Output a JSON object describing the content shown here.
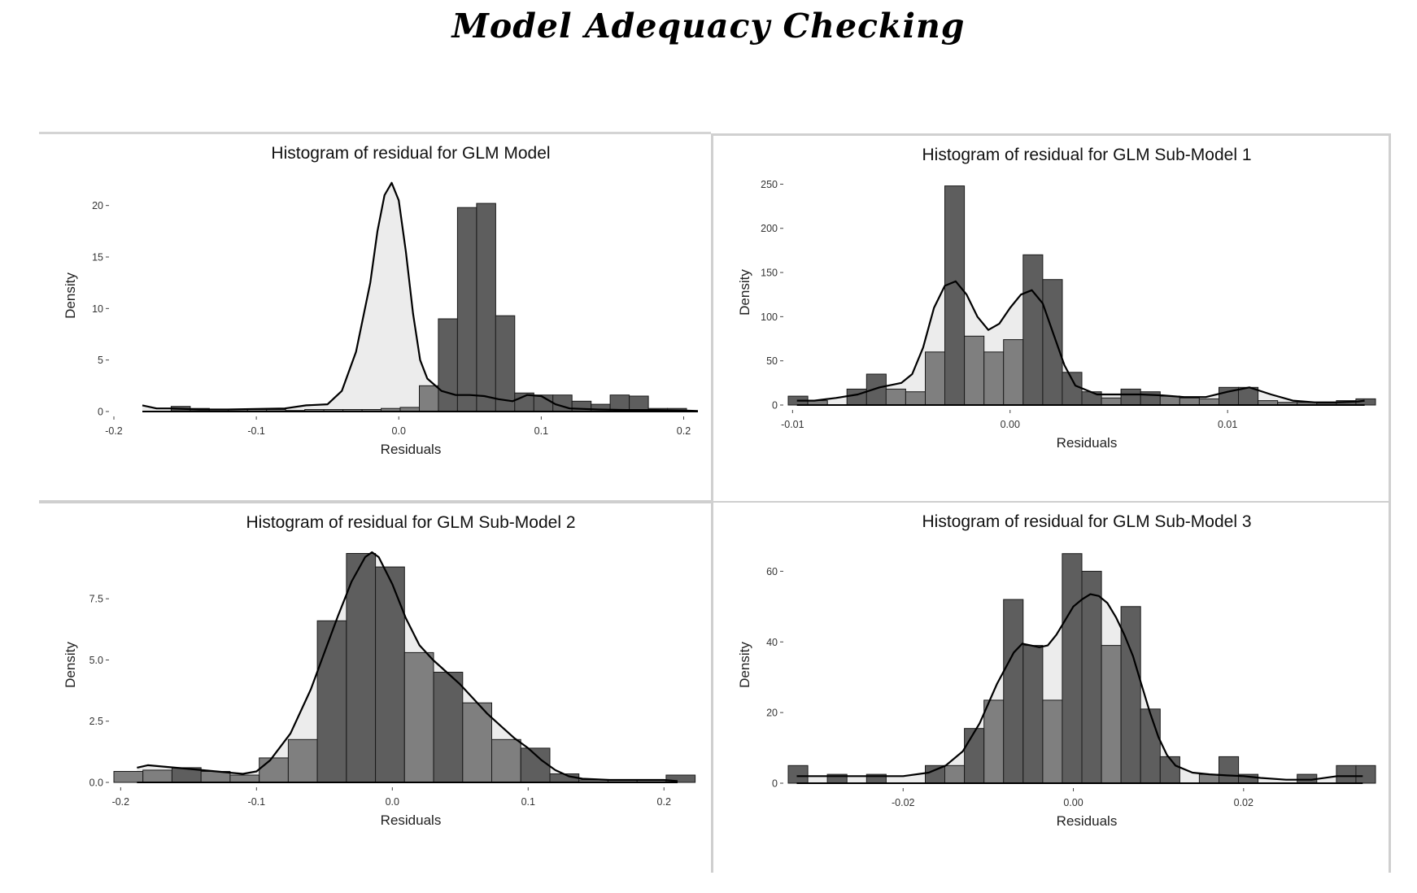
{
  "title": "Model Adequacy Checking",
  "chart_data": [
    {
      "type": "histogram",
      "title": "Histogram of residual for GLM Model",
      "xlabel": "Residuals",
      "ylabel": "Density",
      "xlim": [
        -0.2,
        0.21
      ],
      "ylim": [
        0,
        22.5
      ],
      "x_ticks": [
        -0.2,
        -0.1,
        0.0,
        0.1,
        0.2
      ],
      "x_tick_labels": [
        "-0.2",
        "-0.1",
        "0.0",
        "0.1",
        "0.2"
      ],
      "y_ticks": [
        0,
        5,
        10,
        15,
        20
      ],
      "y_tick_labels": [
        "0",
        "5",
        "10",
        "15",
        "20"
      ],
      "bin_start": -0.2,
      "bin_width": 0.0134,
      "bin_values": [
        0,
        0,
        0,
        0.5,
        0.3,
        0.2,
        0.2,
        0.2,
        0.2,
        0.1,
        0.2,
        0.2,
        0.2,
        0.2,
        0.3,
        0.4,
        2.5,
        9.0,
        19.8,
        20.2,
        9.3,
        1.8,
        1.6,
        1.6,
        1.0,
        0.7,
        1.6,
        1.5,
        0.3,
        0.3,
        0,
        0,
        0,
        0,
        0,
        0,
        0
      ],
      "density_curve": {
        "x": [
          -0.18,
          -0.17,
          -0.16,
          -0.14,
          -0.12,
          -0.1,
          -0.08,
          -0.065,
          -0.05,
          -0.04,
          -0.03,
          -0.02,
          -0.015,
          -0.01,
          -0.005,
          0.0,
          0.005,
          0.01,
          0.015,
          0.02,
          0.03,
          0.04,
          0.05,
          0.06,
          0.07,
          0.08,
          0.09,
          0.1,
          0.11,
          0.12,
          0.14,
          0.16,
          0.18,
          0.2,
          0.21
        ],
        "y": [
          0.6,
          0.3,
          0.3,
          0.2,
          0.2,
          0.25,
          0.3,
          0.6,
          0.7,
          2.0,
          5.8,
          12.5,
          17.5,
          21.0,
          22.2,
          20.5,
          15.5,
          9.5,
          5.0,
          3.2,
          2.0,
          1.6,
          1.6,
          1.5,
          1.2,
          1.0,
          1.6,
          1.5,
          0.7,
          0.3,
          0.2,
          0.15,
          0.15,
          0.1,
          0.05
        ]
      }
    },
    {
      "type": "histogram",
      "title": "Histogram of residual for GLM Sub-Model 1",
      "xlabel": "Residuals",
      "ylabel": "Density",
      "xlim": [
        -0.0102,
        0.0168
      ],
      "ylim": [
        0,
        255
      ],
      "x_ticks": [
        -0.01,
        0.0,
        0.01
      ],
      "x_tick_labels": [
        "-0.01",
        "0.00",
        "0.01"
      ],
      "y_ticks": [
        0,
        50,
        100,
        150,
        200,
        250
      ],
      "y_tick_labels": [
        "0",
        "50",
        "100",
        "150",
        "200",
        "250"
      ],
      "bin_start": -0.0102,
      "bin_width": 0.0009,
      "bin_values": [
        10,
        5,
        0,
        18,
        35,
        18,
        15,
        60,
        248,
        78,
        60,
        74,
        170,
        142,
        37,
        15,
        8,
        18,
        15,
        10,
        8,
        7,
        20,
        20,
        5,
        3,
        3,
        2,
        5,
        7
      ],
      "density_curve": {
        "x": [
          -0.0098,
          -0.009,
          -0.008,
          -0.007,
          -0.006,
          -0.005,
          -0.0045,
          -0.004,
          -0.0035,
          -0.003,
          -0.0025,
          -0.002,
          -0.0015,
          -0.001,
          -0.0005,
          0.0,
          0.0005,
          0.001,
          0.0015,
          0.002,
          0.0025,
          0.003,
          0.004,
          0.005,
          0.006,
          0.007,
          0.008,
          0.009,
          0.01,
          0.011,
          0.012,
          0.013,
          0.014,
          0.015,
          0.016,
          0.0163
        ],
        "y": [
          5,
          5,
          8,
          12,
          20,
          25,
          35,
          65,
          110,
          135,
          140,
          125,
          100,
          85,
          92,
          110,
          125,
          130,
          115,
          80,
          45,
          22,
          12,
          12,
          12,
          11,
          9,
          9,
          15,
          20,
          12,
          5,
          3,
          3,
          4,
          5
        ]
      }
    },
    {
      "type": "histogram",
      "title": "Histogram of residual for GLM Sub-Model 2",
      "xlabel": "Residuals",
      "ylabel": "Density",
      "xlim": [
        -0.205,
        0.225
      ],
      "ylim": [
        0,
        9.6
      ],
      "x_ticks": [
        -0.2,
        -0.1,
        0.0,
        0.1,
        0.2
      ],
      "x_tick_labels": [
        "-0.2",
        "-0.1",
        "0.0",
        "0.1",
        "0.2"
      ],
      "y_ticks": [
        0,
        2.5,
        5.0,
        7.5
      ],
      "y_tick_labels": [
        "0.0",
        "2.5",
        "5.0",
        "7.5"
      ],
      "bin_start": -0.205,
      "bin_width": 0.0214,
      "bin_values": [
        0.45,
        0.5,
        0.6,
        0.45,
        0.3,
        1.0,
        1.75,
        6.6,
        9.35,
        8.8,
        5.3,
        4.5,
        3.25,
        1.75,
        1.4,
        0.35,
        0.1,
        0.1,
        0.1,
        0.3
      ],
      "density_curve": {
        "x": [
          -0.188,
          -0.18,
          -0.16,
          -0.14,
          -0.12,
          -0.11,
          -0.1,
          -0.09,
          -0.075,
          -0.06,
          -0.05,
          -0.04,
          -0.03,
          -0.02,
          -0.015,
          -0.01,
          0.0,
          0.01,
          0.02,
          0.03,
          0.04,
          0.05,
          0.06,
          0.07,
          0.08,
          0.09,
          0.1,
          0.11,
          0.12,
          0.13,
          0.14,
          0.16,
          0.18,
          0.2,
          0.21
        ],
        "y": [
          0.6,
          0.7,
          0.6,
          0.5,
          0.4,
          0.35,
          0.45,
          0.9,
          2.0,
          3.8,
          5.3,
          6.8,
          8.2,
          9.2,
          9.4,
          9.2,
          8.1,
          6.7,
          5.6,
          5.0,
          4.5,
          4.0,
          3.4,
          2.8,
          2.3,
          1.8,
          1.4,
          0.9,
          0.5,
          0.25,
          0.15,
          0.1,
          0.1,
          0.1,
          0.05
        ]
      }
    },
    {
      "type": "histogram",
      "title": "Histogram of residual for GLM Sub-Model 3",
      "xlabel": "Residuals",
      "ylabel": "Density",
      "xlim": [
        -0.0335,
        0.0355
      ],
      "ylim": [
        0,
        67
      ],
      "x_ticks": [
        -0.02,
        0.0,
        0.02
      ],
      "x_tick_labels": [
        "-0.02",
        "0.00",
        "0.02"
      ],
      "y_ticks": [
        0,
        20,
        40,
        60
      ],
      "y_tick_labels": [
        "0",
        "20",
        "40",
        "60"
      ],
      "bin_start": -0.0335,
      "bin_width": 0.0023,
      "bin_values": [
        5,
        0,
        2.5,
        0,
        2.5,
        0,
        0,
        5,
        5,
        15.5,
        23.5,
        52,
        39,
        23.5,
        65,
        60,
        39,
        50,
        21,
        7.5,
        0,
        2.5,
        7.5,
        2.5,
        0,
        0,
        2.5,
        0,
        5,
        5
      ],
      "density_curve": {
        "x": [
          -0.0325,
          -0.03,
          -0.025,
          -0.02,
          -0.017,
          -0.015,
          -0.013,
          -0.011,
          -0.009,
          -0.007,
          -0.006,
          -0.005,
          -0.004,
          -0.003,
          -0.002,
          -0.001,
          0.0,
          0.001,
          0.002,
          0.003,
          0.004,
          0.005,
          0.006,
          0.007,
          0.008,
          0.009,
          0.01,
          0.011,
          0.012,
          0.014,
          0.016,
          0.018,
          0.02,
          0.022,
          0.025,
          0.028,
          0.031,
          0.034
        ],
        "y": [
          2,
          2,
          2,
          2,
          3,
          5,
          9,
          17,
          28,
          37,
          39.5,
          39,
          38.5,
          39,
          42,
          46,
          50,
          52,
          53.5,
          53,
          51,
          47,
          42,
          36,
          28,
          20,
          13,
          8,
          5,
          3,
          2.5,
          2.2,
          2,
          1.5,
          1,
          1,
          2,
          2
        ]
      }
    }
  ]
}
